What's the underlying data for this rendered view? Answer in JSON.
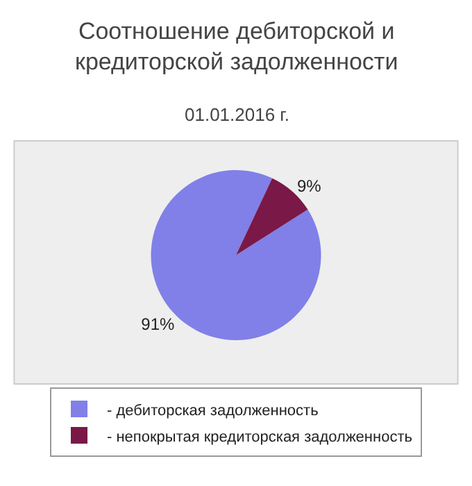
{
  "chart_data": {
    "type": "pie",
    "title": "Соотношение дебиторской и\nкредиторской задолженности",
    "subtitle": "01.01.2016 г.",
    "categories": [
      "- дебиторская задолженность",
      "- непокрытая кредиторская задолженность"
    ],
    "values": [
      91,
      9
    ],
    "colors": [
      "#8080e8",
      "#7a1848"
    ],
    "value_labels": [
      "91%",
      "9%"
    ],
    "legend": "bottom"
  }
}
